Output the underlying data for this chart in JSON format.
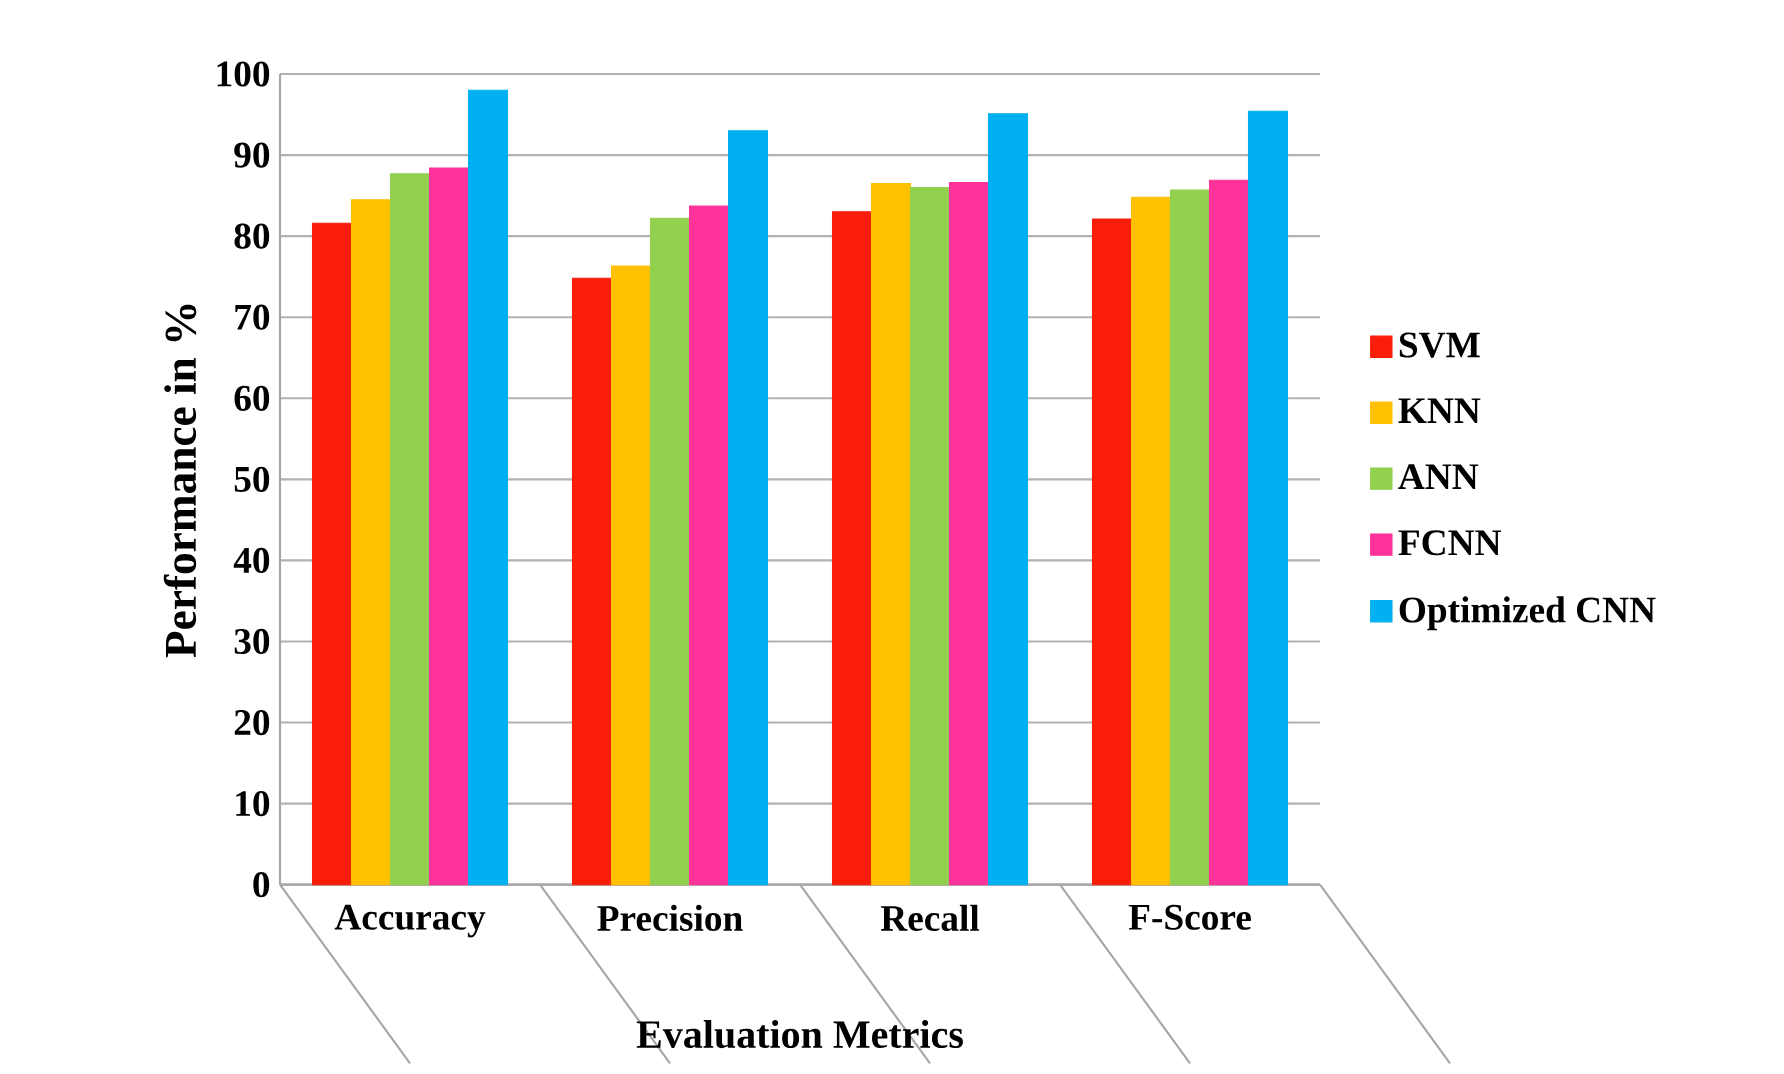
{
  "chart_data": {
    "type": "bar",
    "xlabel": "Evaluation Metrics",
    "ylabel": "Performance in %",
    "categories": [
      "Accuracy",
      "Precision",
      "Recall",
      "F-Score"
    ],
    "series": [
      {
        "name": "SVM",
        "color": "#fa1e0a",
        "values": [
          81.6,
          74.8,
          83.0,
          82.1
        ]
      },
      {
        "name": "KNN",
        "color": "#ffc000",
        "values": [
          84.5,
          76.3,
          86.5,
          84.8
        ]
      },
      {
        "name": "ANN",
        "color": "#92d050",
        "values": [
          87.7,
          82.2,
          86.0,
          85.7
        ]
      },
      {
        "name": "FCNN",
        "color": "#ff3399",
        "values": [
          88.4,
          83.7,
          86.6,
          86.9
        ]
      },
      {
        "name": "Optimized CNN",
        "color": "#00b0f0",
        "values": [
          98.0,
          93.0,
          95.1,
          95.4
        ]
      }
    ],
    "ylim": [
      0,
      100
    ],
    "yticks": [
      0,
      10,
      20,
      30,
      40,
      50,
      60,
      70,
      80,
      90,
      100
    ],
    "grid": "y",
    "legend": "right"
  }
}
